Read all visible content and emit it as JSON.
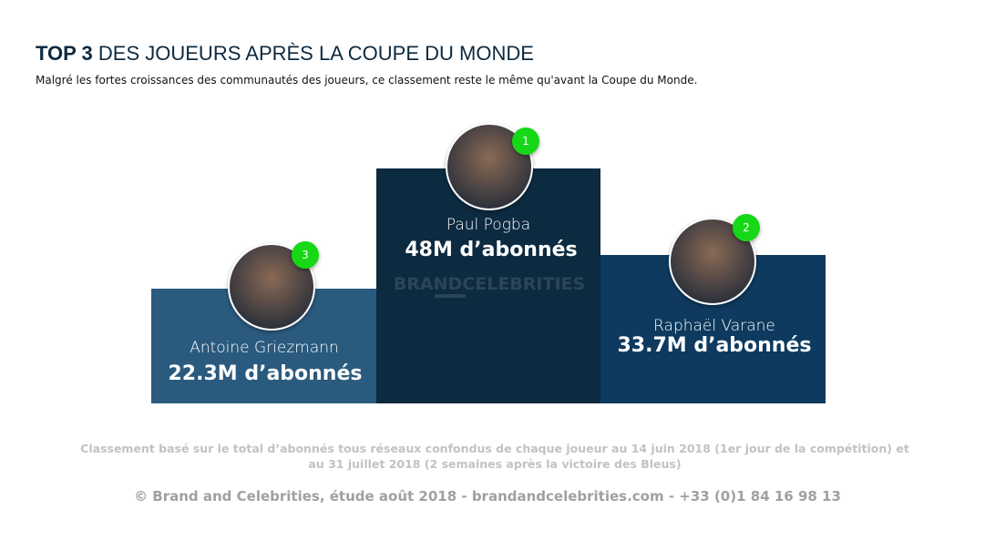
{
  "header": {
    "title_strong": "TOP 3",
    "title_rest": "DES JOUEURS APRÈS LA COUPE DU MONDE",
    "subtitle": "Malgré les fortes croissances des communautés des joueurs, ce classement reste le même qu'avant la Coupe du Monde."
  },
  "podium": [
    {
      "rank": 3,
      "name": "Antoine Griezmann",
      "followers": "22.3M d’abonnés"
    },
    {
      "rank": 1,
      "name": "Paul Pogba",
      "followers": "48M d’abonnés"
    },
    {
      "rank": 2,
      "name": "Raphaël Varane",
      "followers": "33.7M d’abonnés"
    }
  ],
  "watermark": "BRANDCELEBRITIES",
  "footnote": [
    "Classement basé sur le total d’abonnés tous réseaux confondus de chaque joueur au 14 juin 2018 (1er jour de la compétition) et",
    "au 31 juillet 2018 (2 semaines après la victoire des Bleus)"
  ],
  "footer": "© Brand and Celebrities, étude août 2018 - brandandcelebrities.com - +33 (0)1 84 16 98 13"
}
